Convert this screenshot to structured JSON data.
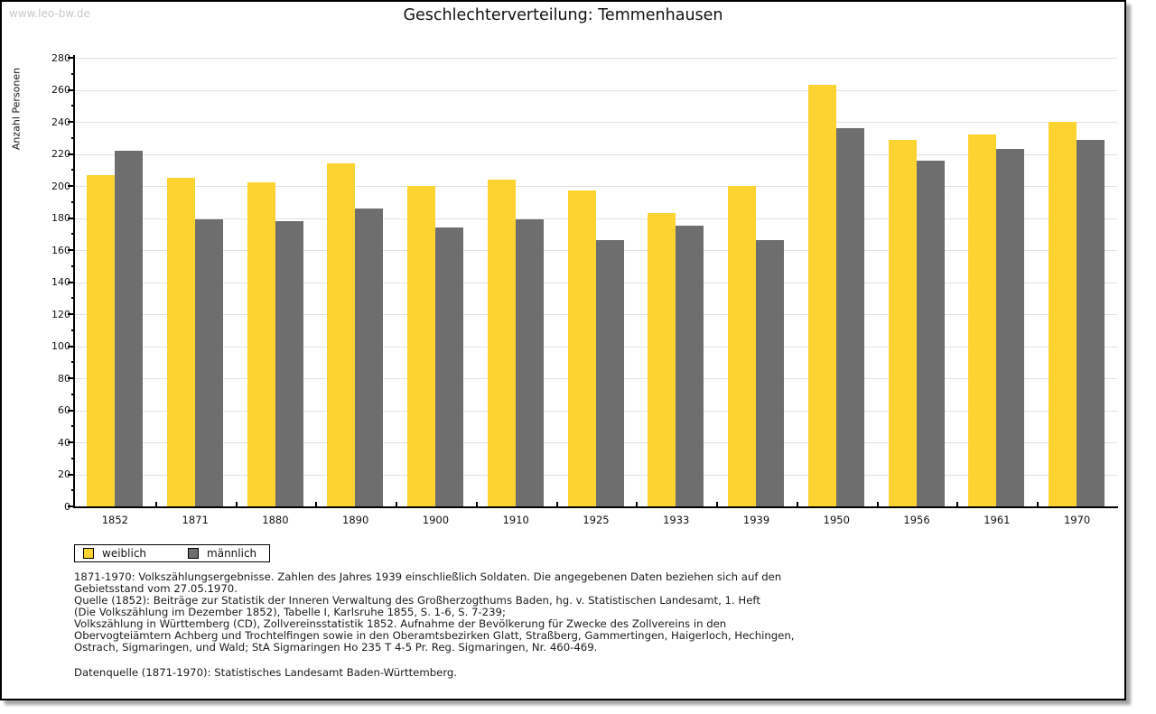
{
  "watermark": "www.leo-bw.de",
  "header": {
    "title": "Geschlechterverteilung: Temmenhausen"
  },
  "chart_data": {
    "type": "bar",
    "title": "Geschlechterverteilung: Temmenhausen",
    "xlabel": "",
    "ylabel": "Anzahl Personen",
    "ylim": [
      0,
      280
    ],
    "ytick_step": 20,
    "ytick_minor_step": 10,
    "grid": true,
    "legend_position": "bottom-left",
    "categories": [
      "1852",
      "1871",
      "1880",
      "1890",
      "1900",
      "1910",
      "1925",
      "1933",
      "1939",
      "1950",
      "1956",
      "1961",
      "1970"
    ],
    "series": [
      {
        "name": "weiblich",
        "color": "#FCD330",
        "values": [
          207,
          205,
          202,
          214,
          200,
          204,
          197,
          183,
          200,
          263,
          229,
          232,
          240
        ]
      },
      {
        "name": "männlich",
        "color": "#6E6E6E",
        "values": [
          222,
          179,
          178,
          186,
          174,
          179,
          166,
          175,
          166,
          236,
          216,
          223,
          229
        ]
      }
    ]
  },
  "footnotes": [
    "1871-1970: Volkszählungsergebnisse. Zahlen des Jahres 1939 einschließlich Soldaten. Die angegebenen Daten beziehen sich auf den",
    "Gebietsstand vom 27.05.1970.",
    "Quelle (1852): Beiträge zur Statistik der Inneren Verwaltung des Großherzogthums Baden, hg. v. Statistischen Landesamt, 1. Heft",
    "(Die Volkszählung im Dezember 1852), Tabelle I, Karlsruhe 1855, S. 1-6, S. 7-239;",
    "Volkszählung in Württemberg (CD), Zollvereinsstatistik 1852. Aufnahme der Bevölkerung für Zwecke des Zollvereins in den",
    "Obervogteiämtern Achberg und Trochtelfingen sowie in den Oberamtsbezirken Glatt, Straßberg, Gammertingen, Haigerloch, Hechingen,",
    "Ostrach, Sigmaringen, und Wald; StA Sigmaringen Ho 235 T 4-5 Pr. Reg. Sigmaringen, Nr. 460-469."
  ],
  "datasource": "Datenquelle (1871-1970): Statistisches Landesamt Baden-Württemberg."
}
